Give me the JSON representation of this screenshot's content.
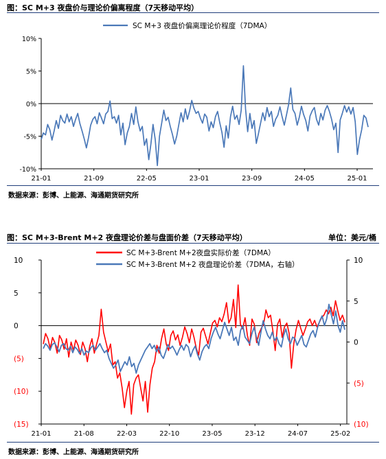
{
  "figure1": {
    "title": "图：SC M+3 夜盘价与理论价偏离程度（7天移动平均）",
    "source": "数据来源：彭博、上能源、海通期货研究所"
  },
  "figure2": {
    "title": "图：SC M+3-Brent M+2 夜盘理论价差与盘面价差（7天移动平均）",
    "unit": "单位：美元/桶",
    "source": "数据来源：彭博、上能源、海通期货研究所"
  },
  "colors": {
    "blue": "#4a78b8",
    "red": "#ff0000",
    "rule": "#1f3d7a"
  },
  "chart_data": [
    {
      "type": "line",
      "title": "",
      "xlabel": "",
      "ylabel": "",
      "ylim": [
        -10,
        10
      ],
      "yticks": [
        10,
        5,
        0,
        -5,
        -10
      ],
      "ytick_labels": [
        "10%",
        "5%",
        "0%",
        "-5%",
        "-10%"
      ],
      "x_tick_labels": [
        "21-01",
        "21-09",
        "22-05",
        "23-01",
        "23-09",
        "24-05",
        "25-01"
      ],
      "legend_position": "top-center",
      "grid": false,
      "series": [
        {
          "name": "SC M+3 夜盘价偏离理论价程度（7DMA）",
          "color": "#4a78b8",
          "values": [
            -5.5,
            -4.5,
            -4.8,
            -3.2,
            -4.0,
            -5.6,
            -4.2,
            -2.6,
            -3.8,
            -1.8,
            -2.6,
            -3.0,
            -1.6,
            -2.8,
            -2.0,
            -3.5,
            -2.4,
            -1.5,
            -3.1,
            -4.2,
            -5.4,
            -6.8,
            -5.2,
            -3.3,
            -2.4,
            -2.0,
            -3.1,
            -1.4,
            -2.2,
            -3.1,
            -1.6,
            -1.2,
            0.4,
            -2.3,
            -2.0,
            -3.0,
            -1.8,
            -4.8,
            -3.0,
            -6.3,
            -4.5,
            -3.5,
            -1.5,
            -3.2,
            -0.5,
            -2.8,
            -4.2,
            -3.5,
            -6.4,
            -5.4,
            -8.6,
            -6.2,
            -3.2,
            -5.5,
            -9.5,
            -5.0,
            -3.0,
            -1.0,
            -2.6,
            -2.1,
            -3.5,
            -4.7,
            -6.2,
            -5.0,
            -3.2,
            -1.4,
            -2.8,
            -0.8,
            -2.4,
            -1.1,
            0.5,
            -0.7,
            -1.5,
            -1.2,
            -2.2,
            -3.0,
            -1.6,
            -2.1,
            -4.2,
            -2.8,
            -3.7,
            -2.0,
            -1.2,
            -2.9,
            -4.4,
            -6.7,
            -3.4,
            -5.3,
            -2.0,
            -0.4,
            -2.4,
            -1.8,
            -3.2,
            -1.0,
            5.8,
            -0.8,
            -4.3,
            -1.5,
            -3.8,
            -2.6,
            -6.1,
            -4.6,
            -3.0,
            -1.4,
            -2.6,
            -0.6,
            -2.0,
            -1.2,
            -3.5,
            -2.4,
            -1.8,
            -0.5,
            -2.0,
            -3.3,
            -1.8,
            -0.2,
            2.4,
            -0.9,
            -1.5,
            -3.3,
            -2.1,
            -0.4,
            -1.7,
            -2.6,
            -4.2,
            -1.9,
            -1.1,
            -0.6,
            -2.4,
            -3.3,
            -1.5,
            -2.5,
            -1.0,
            -0.3,
            -1.2,
            -2.4,
            -4.0,
            -3.0,
            -7.5,
            -2.5,
            -1.5,
            -0.3,
            -1.3,
            -0.5,
            -1.6,
            -0.6,
            -2.8,
            -7.8,
            -5.5,
            -4.0,
            -1.8,
            -2.2,
            -3.6
          ]
        }
      ]
    },
    {
      "type": "line",
      "title": "",
      "xlabel": "",
      "ylabel": "",
      "ylim": [
        -15,
        10
      ],
      "yticks": [
        10,
        5,
        0,
        -5,
        -10,
        -15
      ],
      "ytick_labels": [
        "10",
        "5",
        "0",
        "(5)",
        "(10)",
        "(15)"
      ],
      "y2lim": [
        -10,
        10
      ],
      "y2ticks": [
        10,
        5,
        0,
        -5,
        -10
      ],
      "y2tick_labels": [
        "10",
        "5",
        "0",
        "(5)",
        "(10)"
      ],
      "x_tick_labels": [
        "21-01",
        "21-08",
        "22-03",
        "22-10",
        "23-05",
        "23-12",
        "24-07",
        "25-02"
      ],
      "legend_position": "top-center",
      "grid": false,
      "series": [
        {
          "name": "SC M+3-Brent M+2夜盘实际价差（7DMA）",
          "color": "#ff0000",
          "axis": "left",
          "values": [
            -2.8,
            -1.2,
            -2.0,
            -3.5,
            -1.8,
            -2.6,
            -4.2,
            -1.5,
            -2.2,
            -3.6,
            -2.0,
            -4.8,
            -2.5,
            -3.8,
            -2.2,
            -3.0,
            -4.4,
            -2.5,
            -3.5,
            -5.5,
            -3.2,
            -2.0,
            -4.2,
            -2.8,
            -1.5,
            2.5,
            -1.0,
            -2.5,
            -4.0,
            -2.8,
            -6.0,
            -5.5,
            -8.0,
            -7.2,
            -9.5,
            -12.5,
            -10.0,
            -8.5,
            -13.5,
            -9.0,
            -8.0,
            -7.5,
            -9.5,
            -11.5,
            -8.5,
            -13.2,
            -9.0,
            -6.5,
            -5.5,
            -3.0,
            -4.2,
            -2.0,
            -0.5,
            -2.8,
            -3.8,
            -1.5,
            -0.8,
            -2.2,
            -1.4,
            -3.0,
            -1.8,
            -0.2,
            -1.2,
            -2.6,
            -0.5,
            -1.8,
            -3.5,
            -4.5,
            -1.0,
            -0.4,
            -1.6,
            -2.8,
            -1.2,
            0.4,
            0.8,
            -0.2,
            1.2,
            0.6,
            1.8,
            3.5,
            0.4,
            1.2,
            4.0,
            -0.3,
            6.2,
            0.2,
            -0.5,
            1.2,
            -1.5,
            -3.0,
            1.0,
            0.2,
            -2.6,
            -1.2,
            -0.4,
            0.2,
            2.4,
            1.2,
            1.6,
            -0.8,
            -3.8,
            0.2,
            1.0,
            -1.8,
            -0.2,
            0.4,
            -1.2,
            -6.5,
            -2.8,
            -0.6,
            0.8,
            -0.4,
            -1.5,
            -0.5,
            0.6,
            1.0,
            0.0,
            0.8,
            -0.2,
            0.5,
            1.2,
            1.6,
            2.4,
            1.8,
            2.8,
            1.5,
            3.8,
            2.2,
            0.8,
            1.6,
            0.5
          ]
        },
        {
          "name": "SC M+3-Brent M+2 夜盘理论价差（7DMA，右轴）",
          "color": "#4a78b8",
          "axis": "right",
          "values": [
            -0.8,
            -0.2,
            -0.5,
            -1.0,
            -0.3,
            -0.1,
            -0.6,
            -1.2,
            -0.4,
            -0.2,
            -0.8,
            -1.0,
            -0.5,
            -1.3,
            -0.6,
            -0.9,
            -1.4,
            -0.8,
            -1.6,
            -1.1,
            -1.3,
            -0.7,
            -0.4,
            -1.0,
            -0.6,
            -0.2,
            -0.8,
            -1.3,
            -1.0,
            -2.0,
            -2.6,
            -3.2,
            -2.8,
            -2.2,
            -3.6,
            -3.0,
            -2.4,
            -2.8,
            -1.8,
            -3.0,
            -2.6,
            -3.8,
            -2.8,
            -2.2,
            -1.6,
            -1.0,
            -0.6,
            -0.2,
            -0.8,
            -0.4,
            -1.2,
            -0.6,
            -1.6,
            -2.0,
            -1.2,
            -0.3,
            -0.8,
            -0.5,
            -1.0,
            -1.6,
            -0.9,
            -0.4,
            -1.0,
            -0.3,
            -0.6,
            -1.8,
            -1.0,
            -0.5,
            -1.5,
            -2.2,
            -1.2,
            -0.6,
            -0.3,
            -0.8,
            0.4,
            1.2,
            1.8,
            1.0,
            0.4,
            1.4,
            2.4,
            1.6,
            0.8,
            1.8,
            0.2,
            0.6,
            -0.4,
            1.4,
            2.0,
            0.6,
            0.2,
            -0.2,
            1.0,
            1.8,
            0.6,
            -0.4,
            1.2,
            2.6,
            1.6,
            0.8,
            0.4,
            1.2,
            0.2,
            0.6,
            -0.2,
            -0.6,
            0.8,
            1.6,
            0.4,
            -0.2,
            0.6,
            0.4,
            -0.4,
            0.2,
            0.8,
            -0.3,
            -0.6,
            0.2,
            1.0,
            1.4,
            0.6,
            1.8,
            2.6,
            3.2,
            2.0,
            2.8,
            4.6,
            3.4,
            2.2,
            3.8,
            2.0,
            1.2,
            2.6,
            1.5
          ]
        }
      ]
    }
  ]
}
